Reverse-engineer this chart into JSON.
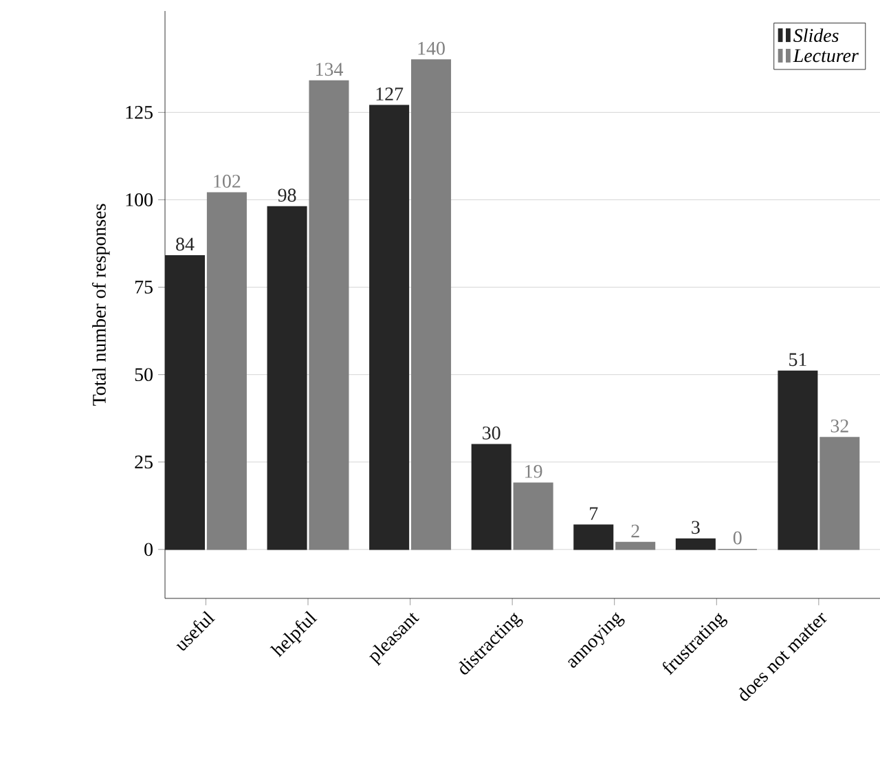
{
  "chart_data": {
    "type": "bar",
    "ylabel": "Total number of responses",
    "categories": [
      "useful",
      "helpful",
      "pleasant",
      "distracting",
      "annoying",
      "frustrating",
      "does not matter"
    ],
    "series": [
      {
        "name": "Slides",
        "color": "#262626",
        "values": [
          84,
          98,
          127,
          30,
          7,
          3,
          51
        ]
      },
      {
        "name": "Lecturer",
        "color": "#808080",
        "values": [
          102,
          134,
          140,
          19,
          2,
          0,
          32
        ]
      }
    ],
    "ylim": [
      -14,
      154
    ],
    "yticks": [
      0,
      25,
      50,
      75,
      100,
      125
    ],
    "grid": "y",
    "legend": "top right",
    "data_labels": true
  }
}
